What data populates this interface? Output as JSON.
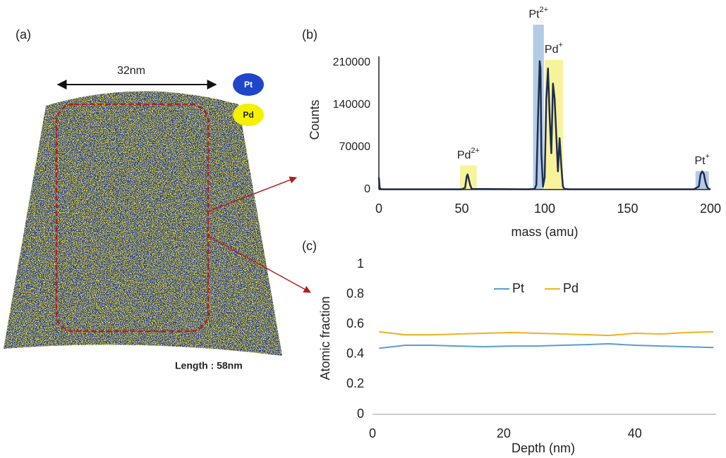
{
  "panel_a": {
    "label": "(a)",
    "width_label": "32nm",
    "legend": [
      "Pt",
      "Pd"
    ],
    "length_label": "Length : 58nm"
  },
  "chart_data": [
    {
      "type": "line",
      "label": "(b)",
      "x_label": "mass (amu)",
      "y_label": "Counts",
      "color": "#1f2d4d",
      "x": [
        0,
        0.5,
        1,
        2,
        50,
        52,
        53,
        53.5,
        54,
        55,
        56,
        90,
        94,
        95,
        96,
        97,
        97.5,
        98,
        99,
        100,
        101,
        102,
        103,
        104,
        105,
        106,
        107,
        108,
        109,
        110,
        111,
        112,
        115,
        190,
        193,
        194,
        195,
        196,
        197,
        198,
        199,
        200
      ],
      "values": [
        20000,
        3000,
        1000,
        500,
        500,
        3000,
        22000,
        25000,
        20000,
        8000,
        1000,
        500,
        1000,
        8000,
        120000,
        212000,
        200000,
        60000,
        5000,
        20000,
        150000,
        200000,
        120000,
        60000,
        175000,
        150000,
        90000,
        30000,
        85000,
        40000,
        5000,
        1000,
        500,
        500,
        5000,
        25000,
        30000,
        26000,
        12000,
        4000,
        1000,
        500
      ],
      "xlim": [
        0,
        200
      ],
      "ylim": [
        0,
        220000
      ],
      "xticks": [
        0,
        50,
        100,
        150,
        200
      ],
      "yticks": [
        0,
        70000,
        140000,
        210000
      ],
      "highlights": [
        {
          "label": "Pd",
          "sup": "2+",
          "range": [
            49,
            59
          ],
          "color": "#f6f39a"
        },
        {
          "label": "Pt",
          "sup": "2+",
          "range": [
            93,
            99.5
          ],
          "color": "#b4cbe8"
        },
        {
          "label": "Pd",
          "sup": "+",
          "range": [
            100,
            111
          ],
          "color": "#f6f39a"
        },
        {
          "label": "Pt",
          "sup": "+",
          "range": [
            191,
            199
          ],
          "color": "#b4cbe8"
        }
      ]
    },
    {
      "type": "line",
      "label": "(c)",
      "x_label": "Depth (nm)",
      "y_label": "Atomic fraction",
      "x": [
        1,
        5,
        9,
        13,
        17,
        21,
        25,
        29,
        33,
        36,
        40,
        44,
        48,
        52
      ],
      "series": [
        {
          "name": "Pt",
          "color": "#5b9bd5",
          "values": [
            0.44,
            0.46,
            0.46,
            0.455,
            0.45,
            0.455,
            0.455,
            0.46,
            0.465,
            0.47,
            0.46,
            0.455,
            0.45,
            0.445
          ]
        },
        {
          "name": "Pd",
          "color": "#f2b01e",
          "values": [
            0.55,
            0.53,
            0.53,
            0.535,
            0.54,
            0.545,
            0.54,
            0.535,
            0.53,
            0.525,
            0.54,
            0.535,
            0.545,
            0.55
          ]
        }
      ],
      "xlim": [
        0,
        52.4
      ],
      "ylim": [
        0,
        1
      ],
      "xticks": [
        0,
        20,
        40
      ],
      "yticks": [
        0,
        0.2,
        0.4,
        0.6,
        0.8,
        1
      ]
    }
  ]
}
